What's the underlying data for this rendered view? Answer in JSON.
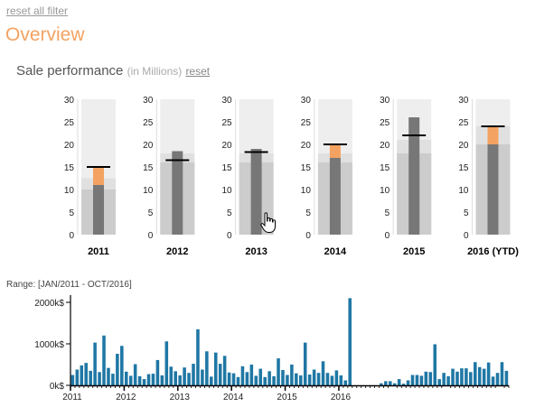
{
  "filters": {
    "reset_all_label": "reset all filter"
  },
  "page": {
    "title": "Overview"
  },
  "sale_performance": {
    "title": "Sale performance",
    "unit": "(in Millions)",
    "reset_label": "reset"
  },
  "range": {
    "label": "Range: [JAN/2011 - OCT/2016]"
  },
  "colors": {
    "range_bg": "#eeeeee",
    "range_mid": "#e0e0e0",
    "range_low": "#cccccc",
    "measure": "#777777",
    "over_target": "#f4a261",
    "target": "#000000",
    "timeline_bar": "#1f77a4"
  },
  "chart_data": [
    {
      "type": "bullet",
      "ylim": [
        0,
        30
      ],
      "yticks": [
        "0",
        "5",
        "10",
        "15",
        "20",
        "25",
        "30"
      ],
      "bullets": [
        {
          "label": "2011",
          "value": 11,
          "target": 15,
          "ranges": [
            10,
            12.5,
            30
          ]
        },
        {
          "label": "2012",
          "value": 18.5,
          "target": 16.5,
          "ranges": [
            16,
            18,
            30
          ]
        },
        {
          "label": "2013",
          "value": 19,
          "target": 18.3,
          "ranges": [
            16,
            18,
            30
          ]
        },
        {
          "label": "2014",
          "value": 17,
          "target": 20,
          "ranges": [
            16,
            18,
            30
          ]
        },
        {
          "label": "2015",
          "value": 26,
          "target": 22,
          "ranges": [
            18,
            21,
            30
          ]
        },
        {
          "label": "2016 (YTD)",
          "value": 20,
          "target": 24,
          "ranges": [
            20,
            24,
            30
          ]
        }
      ]
    },
    {
      "type": "bar",
      "ylim": [
        0,
        2000
      ],
      "yticks": [
        "0k$",
        "1000k$",
        "2000k$"
      ],
      "xticks": [
        "2011",
        "2012",
        "2013",
        "2014",
        "2015",
        "2016"
      ],
      "start": "2011-01",
      "end": "2016-10",
      "values": [
        250,
        380,
        480,
        540,
        350,
        1030,
        320,
        1200,
        420,
        280,
        760,
        950,
        330,
        230,
        510,
        220,
        150,
        270,
        280,
        610,
        240,
        1060,
        450,
        340,
        240,
        430,
        300,
        520,
        1350,
        380,
        820,
        210,
        790,
        520,
        710,
        310,
        290,
        200,
        460,
        320,
        500,
        230,
        400,
        200,
        340,
        220,
        650,
        370,
        250,
        500,
        290,
        240,
        1030,
        260,
        380,
        300,
        580,
        300,
        230,
        360,
        240,
        120,
        2100,
        0,
        0,
        0,
        0,
        0,
        0,
        50,
        100,
        100,
        50,
        150,
        40,
        120,
        250,
        250,
        230,
        330,
        320,
        990,
        150,
        300,
        220,
        400,
        330,
        410,
        410,
        320,
        560,
        440,
        400,
        550,
        210,
        300,
        560,
        350
      ]
    }
  ]
}
